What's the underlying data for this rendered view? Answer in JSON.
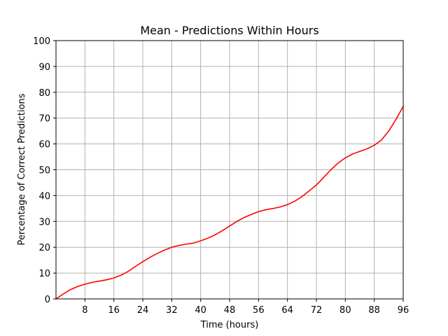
{
  "chart_data": {
    "type": "line",
    "title": "Mean - Predictions Within Hours",
    "xlabel": "Time (hours)",
    "ylabel": "Percentage of Correct Predictions",
    "xlim": [
      0,
      96
    ],
    "ylim": [
      0,
      100
    ],
    "x_ticks": [
      "8",
      "16",
      "24",
      "32",
      "40",
      "48",
      "56",
      "64",
      "72",
      "80",
      "88",
      "96"
    ],
    "y_ticks": [
      "0",
      "10",
      "20",
      "30",
      "40",
      "50",
      "60",
      "70",
      "80",
      "90",
      "100"
    ],
    "grid": true,
    "series": [
      {
        "color": "#ff0000",
        "x": [
          0,
          2,
          4,
          6,
          8,
          10,
          12,
          14,
          16,
          18,
          20,
          22,
          24,
          26,
          28,
          30,
          32,
          34,
          36,
          38,
          40,
          42,
          44,
          46,
          48,
          50,
          52,
          54,
          56,
          58,
          60,
          62,
          64,
          66,
          68,
          70,
          72,
          74,
          76,
          78,
          80,
          82,
          84,
          86,
          88,
          90,
          92,
          94,
          96
        ],
        "y": [
          0,
          1.9,
          3.6,
          4.8,
          5.7,
          6.4,
          6.9,
          7.4,
          8.1,
          9.2,
          10.7,
          12.6,
          14.4,
          16.1,
          17.6,
          18.9,
          20.0,
          20.7,
          21.2,
          21.6,
          22.5,
          23.5,
          24.8,
          26.4,
          28.2,
          30.0,
          31.5,
          32.7,
          33.8,
          34.5,
          35.0,
          35.6,
          36.5,
          37.8,
          39.6,
          41.8,
          44.1,
          47.0,
          50.0,
          52.6,
          54.6,
          56.1,
          57.1,
          58.1,
          59.5,
          61.5,
          65.0,
          69.5,
          74.5
        ]
      }
    ]
  }
}
